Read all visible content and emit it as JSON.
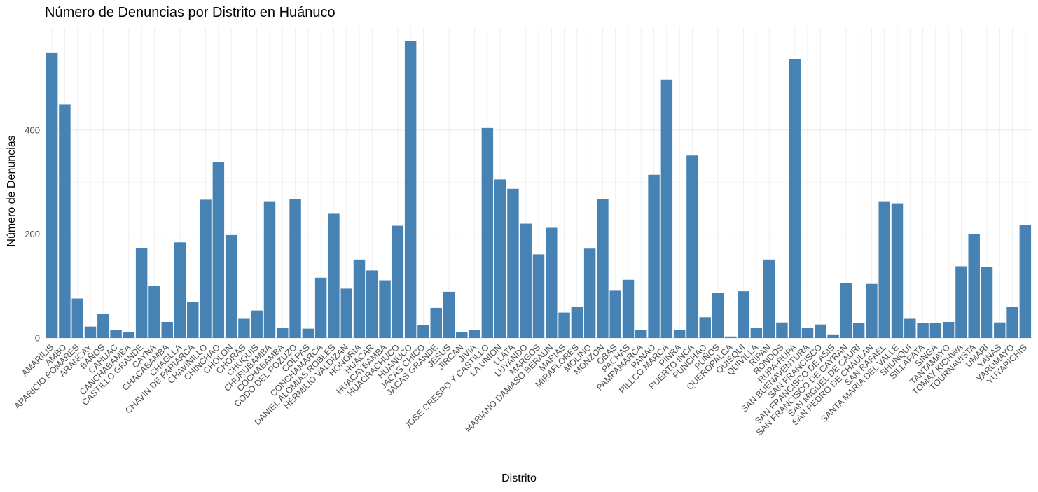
{
  "chart_data": {
    "type": "bar",
    "title": "Número de Denuncias por Distrito en Huánuco",
    "xlabel": "Distrito",
    "ylabel": "Número de Denuncias",
    "ylim": [
      0,
      570
    ],
    "yticks": [
      0,
      200,
      400
    ],
    "grid": true,
    "bar_color": "#4682B4",
    "categories": [
      "AMARILIS",
      "AMBO",
      "APARICIO POMARES",
      "ARANCAY",
      "BAÑOS",
      "CAHUAC",
      "CANCHABAMBA",
      "CASTILLO GRANDE",
      "CAYNA",
      "CHACABAMBA",
      "CHAGLLA",
      "CHAVIN DE PARIARCA",
      "CHAVINILLO",
      "CHINCHAO",
      "CHOLON",
      "CHORAS",
      "CHUQUIS",
      "CHURUBAMBA",
      "COCHABAMBA",
      "CODO DEL POZUZO",
      "COLPAS",
      "CONCHAMARCA",
      "DANIEL ALOMIAS ROBLES",
      "HERMILIO VALDIZAN",
      "HONORIA",
      "HUACAR",
      "HUACAYBAMBA",
      "HUACRACHUCO",
      "HUANUCO",
      "JACAS CHICO",
      "JACAS GRANDE",
      "JESUS",
      "JIRCAN",
      "JIVIA",
      "JOSE CRESPO Y CASTILLO",
      "LA UNION",
      "LLATA",
      "LUYANDO",
      "MARGOS",
      "MARIANO DAMASO BERAUN",
      "MARIAS",
      "MIRAFLORES",
      "MOLINO",
      "MONZON",
      "OBAS",
      "PACHAS",
      "PAMPAMARCA",
      "PANAO",
      "PILLCO MARCA",
      "PINRA",
      "PUERTO INCA",
      "PUNCHAO",
      "PUÑOS",
      "QUEROPALCA",
      "QUISQUI",
      "QUIVILLA",
      "RIPAN",
      "RONDOS",
      "RUPA-RUPA",
      "SAN BUENAVENTURA",
      "SAN FRANCISCO",
      "SAN FRANCISCO DE ASIS",
      "SAN FRANCISCO DE CAYRAN",
      "SAN MIGUEL DE CAURI",
      "SAN PEDRO DE CHAULAN",
      "SAN RAFAEL",
      "SANTA MARIA DEL VALLE",
      "SHUNQUI",
      "SILLAPATA",
      "SINGA",
      "TANTAMAYO",
      "TOMAY KICHWA",
      "TOURNAVISTA",
      "UMARI",
      "YANAS",
      "YARUMAYO",
      "YUYAPICHIS"
    ],
    "values": [
      548,
      449,
      76,
      22,
      46,
      15,
      11,
      173,
      100,
      31,
      184,
      70,
      266,
      338,
      198,
      37,
      53,
      263,
      19,
      267,
      18,
      116,
      239,
      95,
      151,
      130,
      111,
      216,
      571,
      25,
      58,
      89,
      11,
      16,
      404,
      305,
      287,
      220,
      161,
      212,
      49,
      60,
      172,
      267,
      91,
      112,
      16,
      314,
      497,
      16,
      351,
      40,
      87,
      3,
      90,
      19,
      151,
      30,
      537,
      19,
      26,
      7,
      106,
      29,
      104,
      263,
      259,
      37,
      29,
      29,
      31,
      138,
      200,
      136,
      30,
      60,
      218
    ]
  }
}
